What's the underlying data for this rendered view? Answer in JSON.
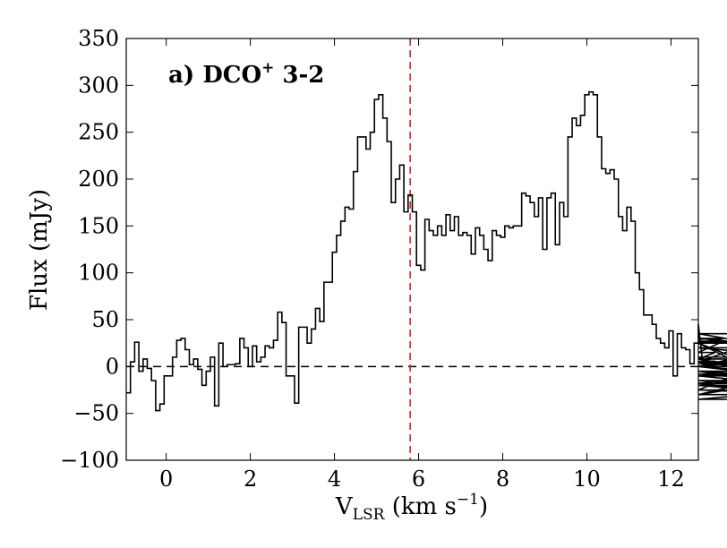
{
  "chart_data": {
    "type": "line",
    "style": "step",
    "panel_label": "a) DCO",
    "panel_label_sup": "+",
    "panel_label_suffix": " 3-2",
    "xlabel_main": "V",
    "xlabel_sub": "LSR",
    "xlabel_units": " (km s",
    "xlabel_exp": "−1",
    "xlabel_close": ")",
    "ylabel": "Flux (mJy)",
    "xlim": [
      -0.95,
      12.65
    ],
    "ylim": [
      -100,
      350
    ],
    "xticks": [
      0,
      2,
      4,
      6,
      8,
      10,
      12
    ],
    "xtick_labels": [
      "0",
      "2",
      "4",
      "6",
      "8",
      "10",
      "12"
    ],
    "yticks": [
      -100,
      -50,
      0,
      50,
      100,
      150,
      200,
      250,
      300,
      350
    ],
    "ytick_labels": [
      "−100",
      "−50",
      "0",
      "50",
      "100",
      "150",
      "200",
      "250",
      "300",
      "350"
    ],
    "zero_line": {
      "y": 0,
      "color": "#000000",
      "style": "dashed"
    },
    "systemic_velocity_line": {
      "x": 5.8,
      "color": "#d62728",
      "style": "dashed"
    },
    "x_start": -0.95,
    "bin_width": 0.1,
    "series": [
      {
        "color": "#000000",
        "values": [
          -28,
          5,
          26,
          -5,
          8,
          -2,
          -15,
          -47,
          -40,
          -10,
          -10,
          10,
          28,
          30,
          18,
          2,
          8,
          -3,
          -20,
          -5,
          10,
          -42,
          25,
          0,
          2,
          2,
          3,
          30,
          20,
          0,
          22,
          5,
          10,
          22,
          20,
          28,
          58,
          47,
          -10,
          -10,
          -39,
          42,
          42,
          25,
          40,
          62,
          48,
          90,
          90,
          122,
          140,
          155,
          170,
          168,
          208,
          245,
          245,
          232,
          250,
          285,
          290,
          265,
          240,
          175,
          200,
          215,
          165,
          183,
          165,
          108,
          103,
          157,
          145,
          140,
          150,
          140,
          162,
          145,
          160,
          140,
          143,
          140,
          120,
          148,
          140,
          125,
          113,
          145,
          140,
          138,
          150,
          148,
          150,
          150,
          185,
          182,
          175,
          160,
          180,
          125,
          180,
          185,
          130,
          175,
          160,
          245,
          265,
          257,
          268,
          290,
          293,
          290,
          245,
          211,
          206,
          210,
          200,
          160,
          145,
          170,
          155,
          100,
          82,
          55,
          55,
          45,
          30,
          25,
          20,
          38,
          -10,
          35,
          20,
          18,
          3,
          25,
          45,
          5,
          5,
          8,
          15,
          25,
          30,
          27,
          25,
          5,
          0,
          0,
          5,
          25,
          0,
          -5,
          -5,
          -10,
          -10,
          -8,
          -15,
          -20,
          -10,
          -20,
          -25,
          20,
          10,
          -30,
          -10,
          -5,
          -25,
          -30,
          5,
          0,
          35,
          8,
          -15,
          -20,
          0,
          -20,
          -35,
          -18,
          3,
          0
        ]
      }
    ]
  }
}
